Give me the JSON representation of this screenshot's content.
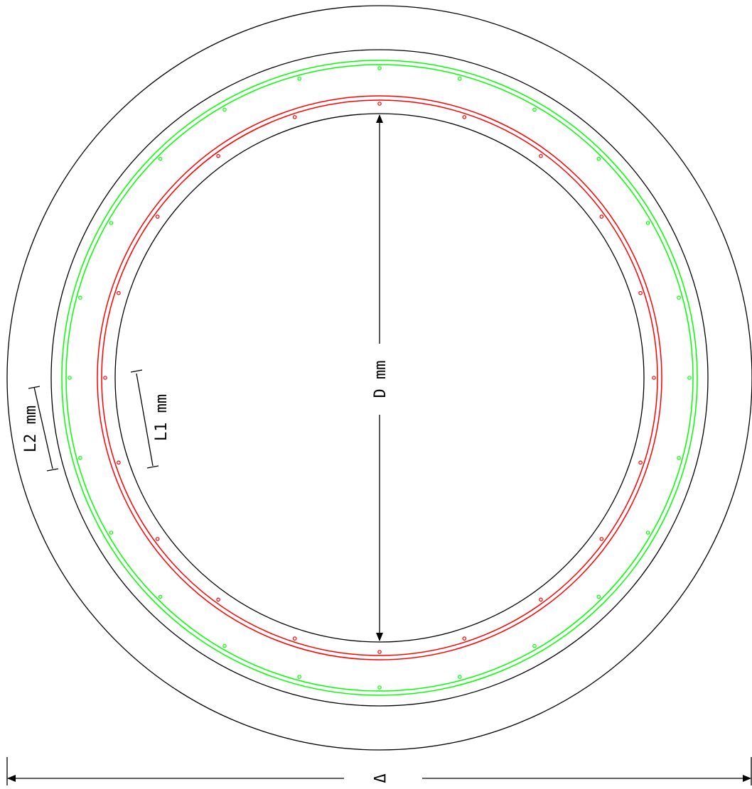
{
  "colors": {
    "background": "#ffffff",
    "outline": "#000000",
    "green_ring": "#00ff00",
    "red_ring": "#ff0000"
  },
  "labels": {
    "diameter": "D mm",
    "l1": "L1 mm",
    "l2": "L2 mm",
    "bottom": "Δ"
  },
  "rebar": {
    "green_bar_count": 24,
    "red_bar_count": 20
  }
}
